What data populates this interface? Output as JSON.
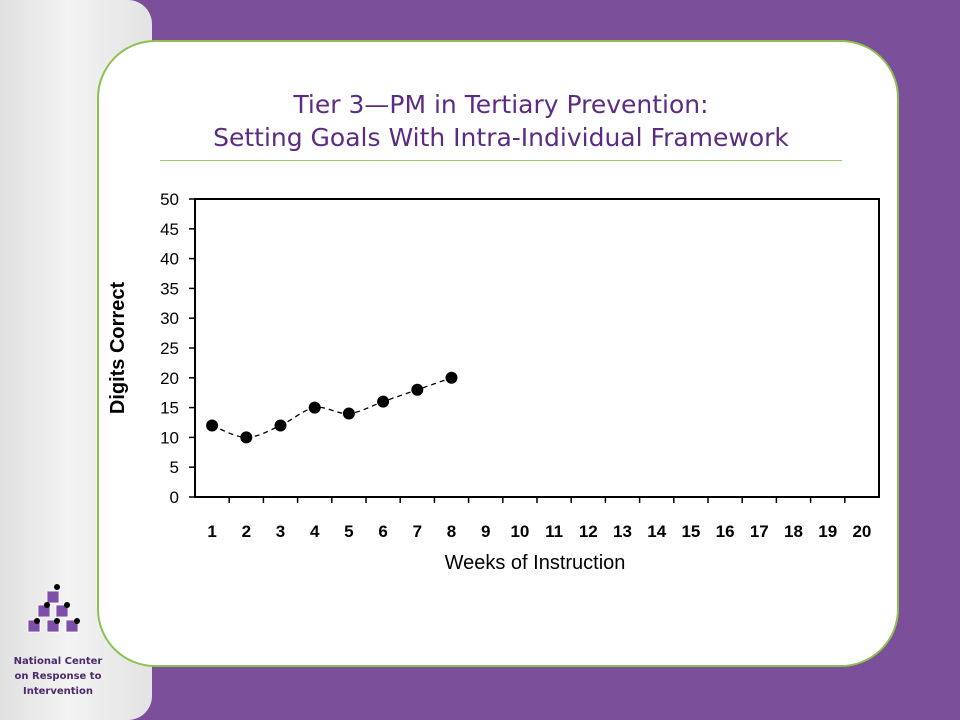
{
  "slide": {
    "title_line1": "Tier 3—PM in Tertiary Prevention:",
    "title_line2": "Setting Goals With Intra-Individual Framework",
    "org_line1": "National Center",
    "org_line2": "on Response to",
    "org_line3": "Intervention"
  },
  "colors": {
    "background": "#7b4f9a",
    "title": "#5b2c81",
    "card_border": "#8cc152",
    "logo_cube": "#7d4fa8"
  },
  "icons": {
    "logo": "stacked-cubes-logo"
  },
  "chart_data": {
    "type": "line",
    "xlabel": "Weeks of Instruction",
    "ylabel": "Digits Correct",
    "x_ticks": [
      1,
      2,
      3,
      4,
      5,
      6,
      7,
      8,
      9,
      10,
      11,
      12,
      13,
      14,
      15,
      16,
      17,
      18,
      19,
      20
    ],
    "y_ticks": [
      0,
      5,
      10,
      15,
      20,
      25,
      30,
      35,
      40,
      45,
      50
    ],
    "xlim": [
      0.5,
      20.5
    ],
    "ylim": [
      0,
      50
    ],
    "grid": false,
    "line_style": "dashed",
    "marker": "filled-circle",
    "series": [
      {
        "x": [
          1,
          2,
          3,
          4,
          5,
          6,
          7,
          8
        ],
        "values": [
          12,
          10,
          12,
          15,
          14,
          16,
          18,
          20
        ]
      }
    ]
  }
}
